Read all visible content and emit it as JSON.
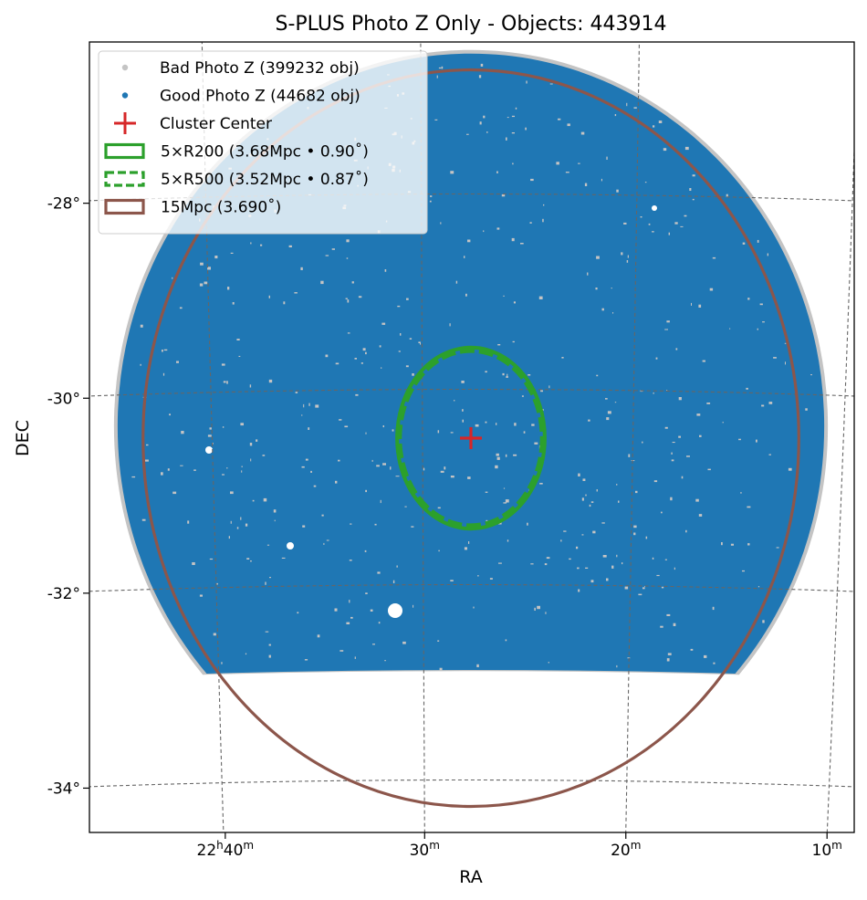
{
  "chart_data": {
    "type": "scatter",
    "title": "S-PLUS Photo Z Only - Objects: 443914",
    "xlabel": "RA",
    "ylabel": "DEC",
    "projection": "sky (WCS)",
    "grid": true,
    "legend_position": "upper-left",
    "xlim_ra_minutes_of_22h": [
      48.5,
      8.2
    ],
    "ylim_dec_deg": [
      -34.5,
      -26.5
    ],
    "x_ticks": [
      {
        "value": 40,
        "hours": "22",
        "minutes": "40",
        "unit": "m"
      },
      {
        "value": 30,
        "hours": "",
        "minutes": "30",
        "unit": "m"
      },
      {
        "value": 20,
        "hours": "",
        "minutes": "20",
        "unit": "m"
      },
      {
        "value": 10,
        "hours": "",
        "minutes": "10",
        "unit": "m"
      }
    ],
    "y_ticks": [
      {
        "value": -28,
        "label": "-28°"
      },
      {
        "value": -30,
        "label": "-30°"
      },
      {
        "value": -32,
        "label": "-32°"
      },
      {
        "value": -34,
        "label": "-34°"
      }
    ],
    "colors": {
      "bad": "#c4c4c4",
      "good": "#1f77b4",
      "center": "#d62728",
      "r200": "#2ca02c",
      "r500": "#2ca02c",
      "mpc15": "#8c564b",
      "grid": "#666666"
    },
    "series": [
      {
        "name": "Bad Photo Z (399232 obj)",
        "count": 399232,
        "kind": "points",
        "color": "#c4c4c4"
      },
      {
        "name": "Good Photo Z (44682 obj)",
        "count": 44682,
        "kind": "points",
        "color": "#1f77b4"
      }
    ],
    "footprint": {
      "description": "circular survey footprint clipped at bottom",
      "center_ra_min": 27.7,
      "center_dec": -30.5,
      "radius_deg": 3.6,
      "dec_min": -32.9
    },
    "cluster_center": {
      "label": "Cluster Center",
      "ra_min": 27.7,
      "dec": -30.5
    },
    "circles": [
      {
        "label": "5×R200 (3.68Mpc • 0.90˚)",
        "radius_deg": 0.9,
        "style": "solid",
        "color": "#2ca02c"
      },
      {
        "label": "5×R500 (3.52Mpc • 0.87˚)",
        "radius_deg": 0.87,
        "style": "dashed",
        "color": "#2ca02c"
      },
      {
        "label": "15Mpc (3.690˚)",
        "radius_deg": 3.69,
        "style": "solid",
        "color": "#8c564b"
      }
    ]
  }
}
